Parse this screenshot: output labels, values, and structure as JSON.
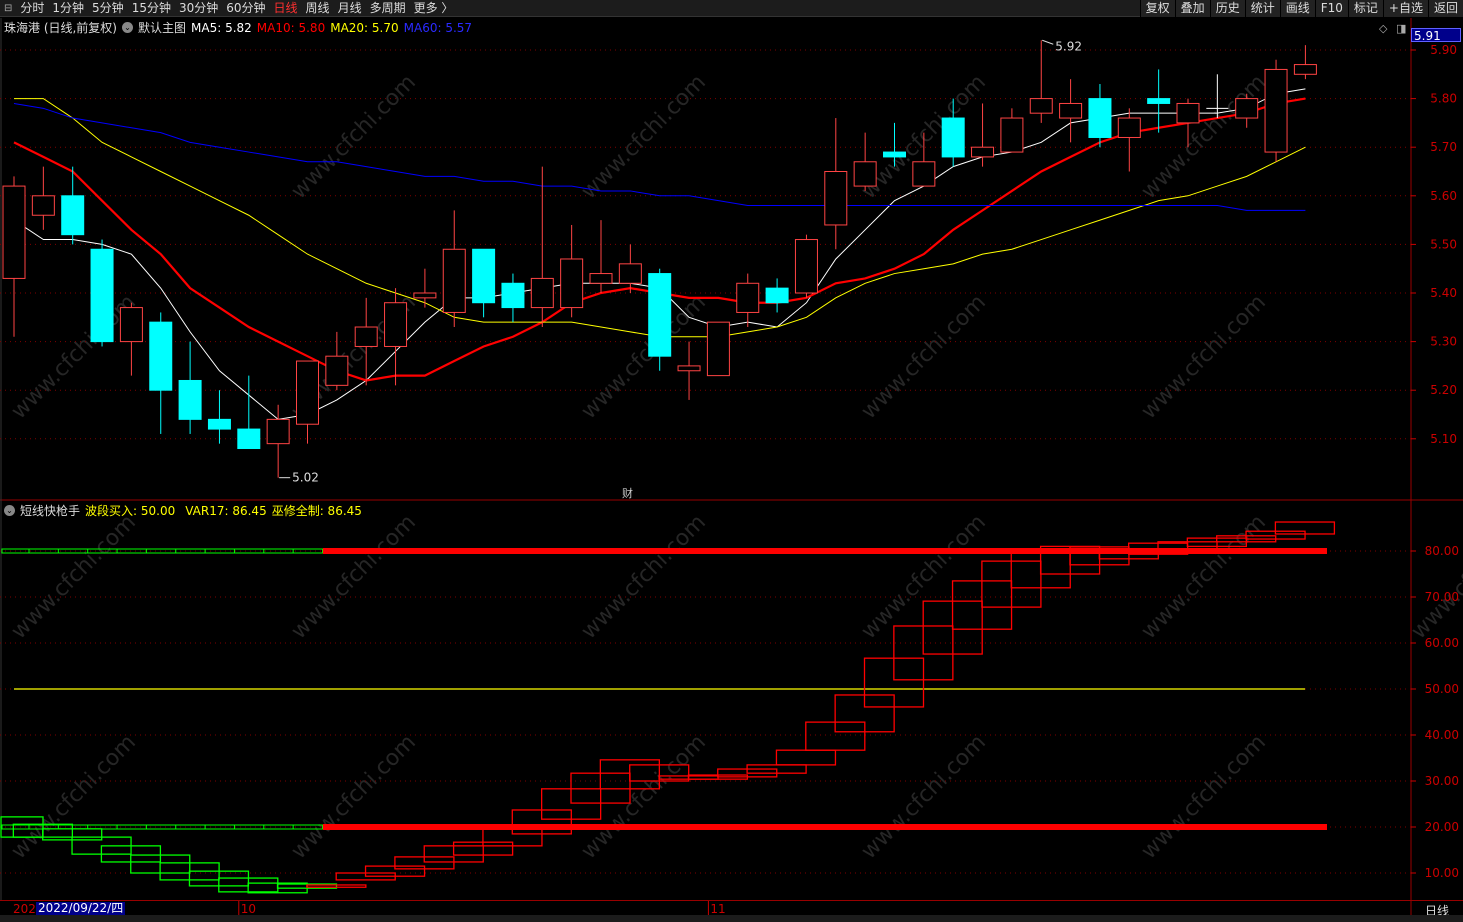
{
  "toolbar": {
    "left": [
      "分时",
      "1分钟",
      "5分钟",
      "15分钟",
      "30分钟",
      "60分钟",
      "日线",
      "周线",
      "月线",
      "多周期",
      "更多 〉"
    ],
    "active": "日线",
    "right": [
      "复权",
      "叠加",
      "历史",
      "统计",
      "画线",
      "F10",
      "标记",
      "+自选",
      "返回"
    ]
  },
  "legend_main": {
    "title": "珠海港 (日线,前复权)",
    "template": "默认主图",
    "ma5": "MA5: 5.82",
    "ma10": "MA10: 5.80",
    "ma20": "MA20: 5.70",
    "ma60": "MA60: 5.57"
  },
  "legend_sub": {
    "name": "短线快枪手",
    "buy": "波段买入: 50.00",
    "var17": "VAR17: 86.45",
    "wx": "巫修全制: 86.45"
  },
  "colors": {
    "up": "#ff4444",
    "down": "#00ffff",
    "ma5": "#ffffff",
    "ma10": "#ff0000",
    "ma20": "#ffff00",
    "ma60": "#0000ff",
    "grid": "#800000",
    "axis": "#cc0000",
    "sub_down": "#00ff00",
    "sub_up": "#ff0000"
  },
  "current_price": "5.91",
  "marker_label": "财",
  "watermark": "www.cfchi.com",
  "date_axis": {
    "prefix": "202",
    "current": "2022/09/22/四",
    "ticks": [
      {
        "label": "10",
        "bar": 8
      },
      {
        "label": "11",
        "bar": 24
      }
    ],
    "period": "日线"
  },
  "chart_data": [
    {
      "type": "candlestick",
      "ylim": [
        5.05,
        5.95
      ],
      "yticks": [
        "5.90",
        "5.80",
        "5.70",
        "5.60",
        "5.50",
        "5.40",
        "5.30",
        "5.20",
        "5.10"
      ],
      "high_label": {
        "text": "5.92",
        "bar": 35
      },
      "low_label": {
        "text": "5.02",
        "bar": 9
      },
      "ohlc": [
        [
          5.43,
          5.64,
          5.31,
          5.62
        ],
        [
          5.56,
          5.66,
          5.53,
          5.6
        ],
        [
          5.6,
          5.66,
          5.5,
          5.52
        ],
        [
          5.49,
          5.51,
          5.29,
          5.3
        ],
        [
          5.3,
          5.38,
          5.23,
          5.37
        ],
        [
          5.34,
          5.36,
          5.11,
          5.2
        ],
        [
          5.22,
          5.3,
          5.11,
          5.14
        ],
        [
          5.14,
          5.2,
          5.09,
          5.12
        ],
        [
          5.12,
          5.23,
          5.08,
          5.08
        ],
        [
          5.09,
          5.17,
          5.02,
          5.14
        ],
        [
          5.13,
          5.26,
          5.09,
          5.26
        ],
        [
          5.21,
          5.32,
          5.2,
          5.27
        ],
        [
          5.29,
          5.39,
          5.21,
          5.33
        ],
        [
          5.29,
          5.41,
          5.21,
          5.38
        ],
        [
          5.39,
          5.45,
          5.37,
          5.4
        ],
        [
          5.36,
          5.57,
          5.33,
          5.49
        ],
        [
          5.49,
          5.49,
          5.35,
          5.38
        ],
        [
          5.42,
          5.44,
          5.34,
          5.37
        ],
        [
          5.37,
          5.66,
          5.33,
          5.43
        ],
        [
          5.37,
          5.54,
          5.35,
          5.47
        ],
        [
          5.42,
          5.55,
          5.4,
          5.44
        ],
        [
          5.42,
          5.5,
          5.4,
          5.46
        ],
        [
          5.44,
          5.45,
          5.24,
          5.27
        ],
        [
          5.24,
          5.3,
          5.18,
          5.25
        ],
        [
          5.23,
          5.34,
          5.23,
          5.34
        ],
        [
          5.36,
          5.44,
          5.33,
          5.42
        ],
        [
          5.41,
          5.43,
          5.36,
          5.38
        ],
        [
          5.4,
          5.52,
          5.39,
          5.51
        ],
        [
          5.54,
          5.76,
          5.49,
          5.65
        ],
        [
          5.62,
          5.73,
          5.61,
          5.67
        ],
        [
          5.69,
          5.75,
          5.66,
          5.68
        ],
        [
          5.62,
          5.73,
          5.62,
          5.67
        ],
        [
          5.76,
          5.8,
          5.66,
          5.68
        ],
        [
          5.68,
          5.79,
          5.66,
          5.7
        ],
        [
          5.69,
          5.78,
          5.69,
          5.76
        ],
        [
          5.77,
          5.92,
          5.75,
          5.8
        ],
        [
          5.76,
          5.84,
          5.71,
          5.79
        ],
        [
          5.8,
          5.83,
          5.7,
          5.72
        ],
        [
          5.72,
          5.78,
          5.65,
          5.76
        ],
        [
          5.8,
          5.86,
          5.73,
          5.79
        ],
        [
          5.75,
          5.8,
          5.7,
          5.79
        ],
        [
          5.78,
          5.85,
          5.76,
          5.78
        ],
        [
          5.76,
          5.81,
          5.74,
          5.8
        ],
        [
          5.69,
          5.88,
          5.67,
          5.86
        ],
        [
          5.85,
          5.91,
          5.84,
          5.87
        ]
      ],
      "series": [
        {
          "name": "MA5",
          "values": [
            5.55,
            5.51,
            5.51,
            5.5,
            5.48,
            5.41,
            5.32,
            5.24,
            5.19,
            5.14,
            5.15,
            5.18,
            5.22,
            5.28,
            5.34,
            5.39,
            5.39,
            5.4,
            5.41,
            5.42,
            5.42,
            5.42,
            5.41,
            5.35,
            5.33,
            5.34,
            5.33,
            5.38,
            5.47,
            5.53,
            5.59,
            5.62,
            5.66,
            5.68,
            5.69,
            5.71,
            5.75,
            5.76,
            5.77,
            5.77,
            5.77,
            5.77,
            5.78,
            5.81,
            5.82
          ]
        },
        {
          "name": "MA10",
          "values": [
            5.71,
            5.68,
            5.65,
            5.59,
            5.53,
            5.48,
            5.41,
            5.37,
            5.33,
            5.3,
            5.27,
            5.24,
            5.22,
            5.23,
            5.23,
            5.26,
            5.29,
            5.31,
            5.34,
            5.38,
            5.4,
            5.41,
            5.4,
            5.39,
            5.39,
            5.38,
            5.38,
            5.39,
            5.42,
            5.43,
            5.45,
            5.48,
            5.53,
            5.57,
            5.61,
            5.65,
            5.68,
            5.71,
            5.73,
            5.74,
            5.75,
            5.76,
            5.77,
            5.79,
            5.8
          ]
        },
        {
          "name": "MA20",
          "values": [
            5.8,
            5.8,
            5.76,
            5.71,
            5.68,
            5.65,
            5.62,
            5.59,
            5.56,
            5.52,
            5.48,
            5.45,
            5.42,
            5.4,
            5.38,
            5.35,
            5.34,
            5.34,
            5.34,
            5.34,
            5.33,
            5.32,
            5.31,
            5.31,
            5.31,
            5.32,
            5.33,
            5.35,
            5.39,
            5.42,
            5.44,
            5.45,
            5.46,
            5.48,
            5.49,
            5.51,
            5.53,
            5.55,
            5.57,
            5.59,
            5.6,
            5.62,
            5.64,
            5.67,
            5.7
          ]
        },
        {
          "name": "MA60",
          "values": [
            5.79,
            5.78,
            5.76,
            5.75,
            5.74,
            5.73,
            5.71,
            5.7,
            5.69,
            5.68,
            5.67,
            5.67,
            5.66,
            5.65,
            5.64,
            5.64,
            5.63,
            5.63,
            5.62,
            5.62,
            5.61,
            5.61,
            5.6,
            5.6,
            5.59,
            5.58,
            5.58,
            5.58,
            5.58,
            5.58,
            5.58,
            5.58,
            5.58,
            5.58,
            5.58,
            5.58,
            5.58,
            5.58,
            5.58,
            5.58,
            5.58,
            5.58,
            5.57,
            5.57,
            5.57
          ]
        }
      ]
    },
    {
      "type": "indicator",
      "ylim": [
        5,
        90
      ],
      "yticks": [
        "80.00",
        "70.00",
        "60.00",
        "50.00",
        "40.00",
        "30.00",
        "20.00",
        "10.00"
      ],
      "levels": {
        "upper": 80,
        "lower": 20,
        "buy": 50
      },
      "level_color_switch_bar": 11,
      "boxes": [
        [
          22.2,
          17.8
        ],
        [
          20.6,
          17.8
        ],
        [
          19.6,
          17.2
        ],
        [
          17.8,
          14.1
        ],
        [
          15.9,
          12.4
        ],
        [
          13.9,
          10.0
        ],
        [
          12.2,
          8.5
        ],
        [
          10.4,
          7.2
        ],
        [
          8.9,
          5.9
        ],
        [
          7.8,
          5.7
        ],
        [
          7.6,
          6.7
        ],
        [
          7.4,
          6.9
        ],
        [
          10.0,
          8.5
        ],
        [
          11.5,
          9.3
        ],
        [
          13.5,
          10.9
        ],
        [
          15.9,
          12.4
        ],
        [
          16.7,
          13.9
        ],
        [
          19.8,
          15.9
        ],
        [
          23.7,
          18.5
        ],
        [
          28.3,
          21.7
        ],
        [
          31.7,
          25.2
        ],
        [
          34.6,
          28.3
        ],
        [
          33.5,
          30.0
        ],
        [
          31.1,
          30.4
        ],
        [
          31.3,
          30.4
        ],
        [
          32.6,
          30.9
        ],
        [
          33.5,
          31.7
        ],
        [
          36.7,
          33.5
        ],
        [
          42.8,
          36.7
        ],
        [
          48.7,
          40.7
        ],
        [
          56.7,
          46.1
        ],
        [
          63.7,
          52.0
        ],
        [
          69.1,
          57.6
        ],
        [
          73.5,
          63.0
        ],
        [
          77.8,
          67.8
        ],
        [
          80.2,
          72.0
        ],
        [
          81.0,
          75.0
        ],
        [
          80.9,
          77.0
        ],
        [
          80.4,
          78.3
        ],
        [
          81.7,
          79.3
        ],
        [
          82.0,
          80.2
        ],
        [
          82.8,
          81.0
        ],
        [
          83.3,
          82.0
        ],
        [
          84.3,
          82.6
        ],
        [
          86.3,
          83.7
        ]
      ]
    }
  ]
}
